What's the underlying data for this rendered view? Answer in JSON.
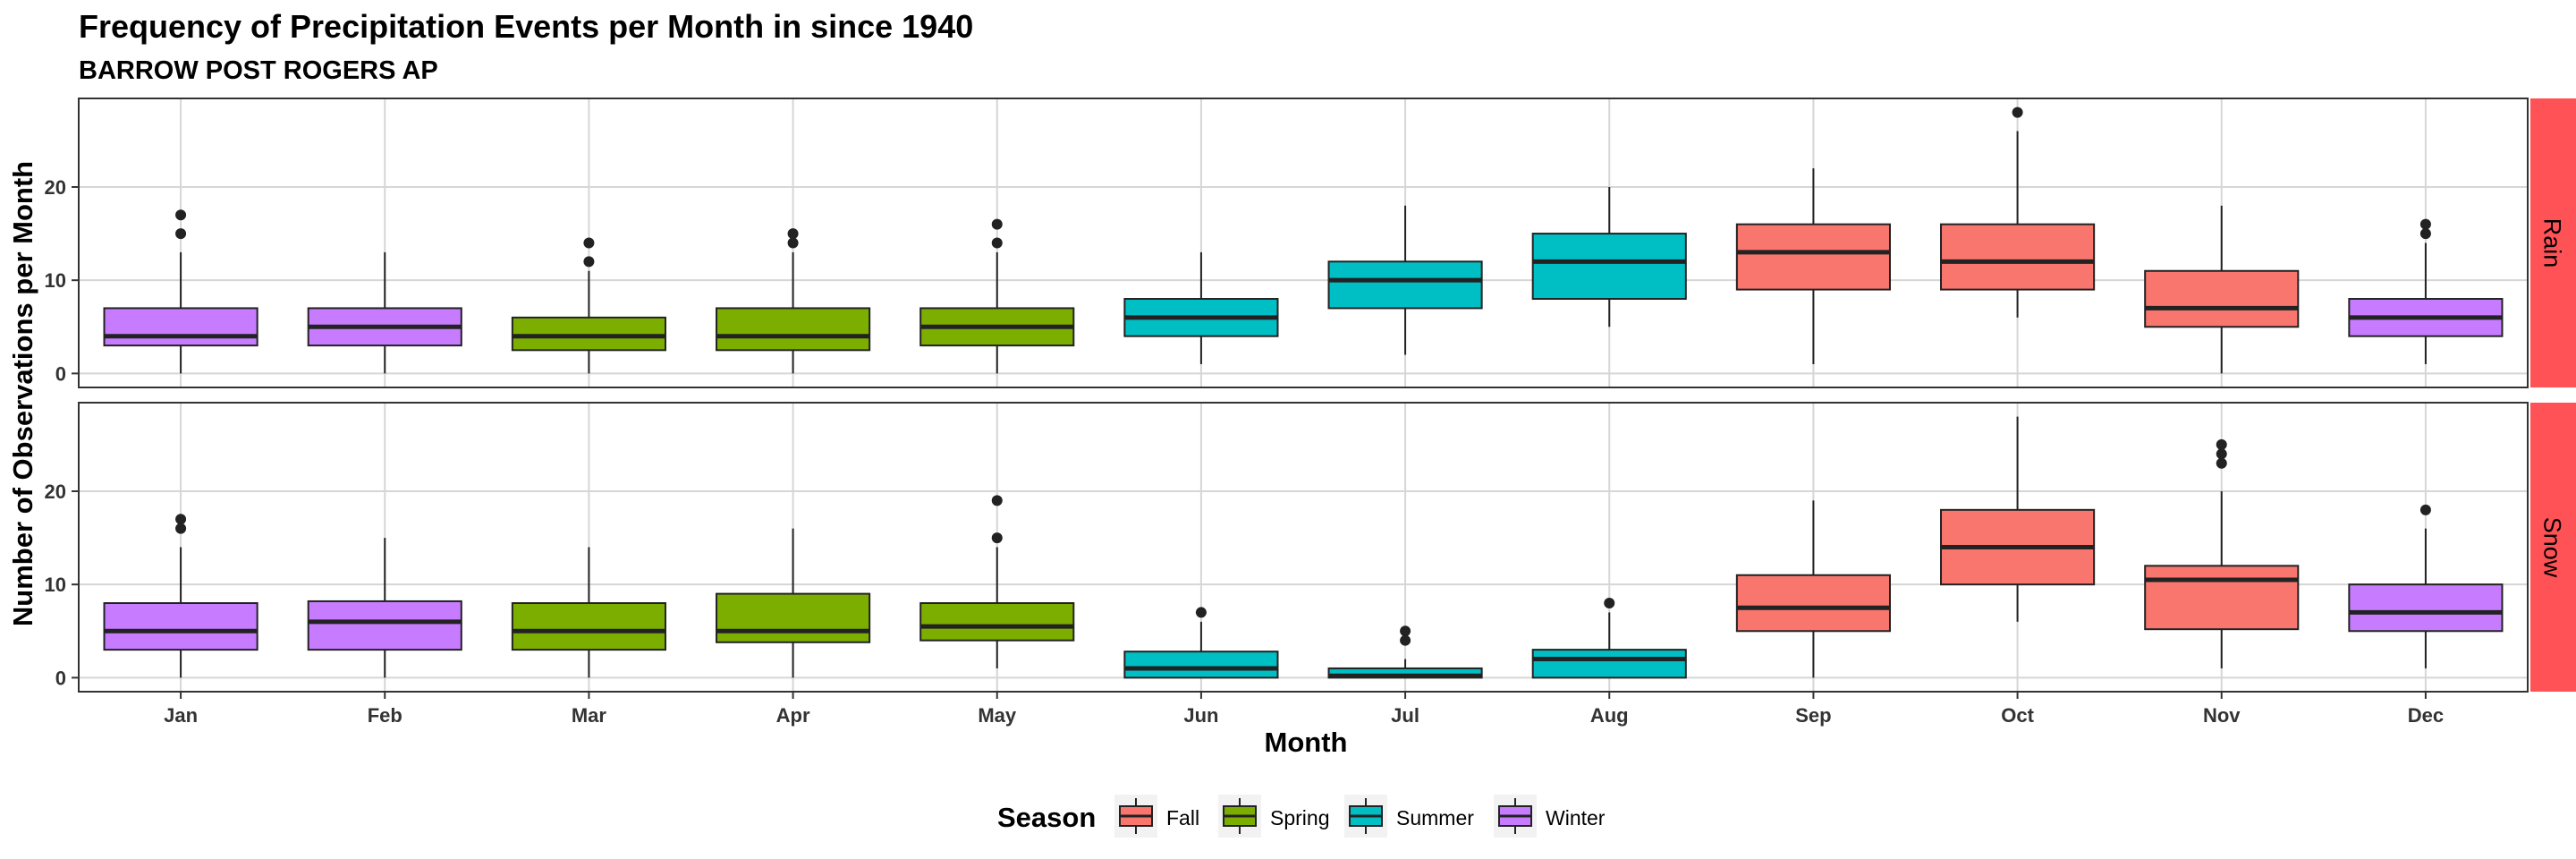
{
  "chart_data": {
    "type": "boxplot",
    "title": "Frequency of Precipitation Events per Month in since 1940",
    "subtitle": "BARROW POST ROGERS AP",
    "xlabel": "Month",
    "ylabel": "Number of Observations per Month",
    "ylim": [
      -1.5,
      29.5
    ],
    "yticks": [
      0,
      10,
      20
    ],
    "grid": true,
    "categories": [
      "Jan",
      "Feb",
      "Mar",
      "Apr",
      "May",
      "Jun",
      "Jul",
      "Aug",
      "Sep",
      "Oct",
      "Nov",
      "Dec"
    ],
    "legend": {
      "title": "Season",
      "position": "bottom",
      "entries": [
        {
          "label": "Fall",
          "color": "#F8766D"
        },
        {
          "label": "Spring",
          "color": "#7CAE00"
        },
        {
          "label": "Summer",
          "color": "#00BFC4"
        },
        {
          "label": "Winter",
          "color": "#C77CFF"
        }
      ]
    },
    "panels": [
      {
        "label": "Rain",
        "boxes": [
          {
            "month": "Jan",
            "season": "Winter",
            "min": 0,
            "q1": 3,
            "median": 4,
            "q3": 7,
            "max": 13,
            "outliers": [
              15,
              17
            ]
          },
          {
            "month": "Feb",
            "season": "Winter",
            "min": 0,
            "q1": 3,
            "median": 5,
            "q3": 7,
            "max": 13,
            "outliers": []
          },
          {
            "month": "Mar",
            "season": "Spring",
            "min": 0,
            "q1": 2.5,
            "median": 4,
            "q3": 6,
            "max": 11,
            "outliers": [
              12,
              14
            ]
          },
          {
            "month": "Apr",
            "season": "Spring",
            "min": 0,
            "q1": 2.5,
            "median": 4,
            "q3": 7,
            "max": 13,
            "outliers": [
              14,
              15
            ]
          },
          {
            "month": "May",
            "season": "Spring",
            "min": 0,
            "q1": 3,
            "median": 5,
            "q3": 7,
            "max": 13,
            "outliers": [
              14,
              16
            ]
          },
          {
            "month": "Jun",
            "season": "Summer",
            "min": 1,
            "q1": 4,
            "median": 6,
            "q3": 8,
            "max": 13,
            "outliers": []
          },
          {
            "month": "Jul",
            "season": "Summer",
            "min": 2,
            "q1": 7,
            "median": 10,
            "q3": 12,
            "max": 18,
            "outliers": []
          },
          {
            "month": "Aug",
            "season": "Summer",
            "min": 5,
            "q1": 8,
            "median": 12,
            "q3": 15,
            "max": 20,
            "outliers": []
          },
          {
            "month": "Sep",
            "season": "Fall",
            "min": 1,
            "q1": 9,
            "median": 13,
            "q3": 16,
            "max": 22,
            "outliers": []
          },
          {
            "month": "Oct",
            "season": "Fall",
            "min": 6,
            "q1": 9,
            "median": 12,
            "q3": 16,
            "max": 26,
            "outliers": [
              28
            ]
          },
          {
            "month": "Nov",
            "season": "Fall",
            "min": 0,
            "q1": 5,
            "median": 7,
            "q3": 11,
            "max": 18,
            "outliers": []
          },
          {
            "month": "Dec",
            "season": "Winter",
            "min": 1,
            "q1": 4,
            "median": 6,
            "q3": 8,
            "max": 14,
            "outliers": [
              15,
              16
            ]
          }
        ]
      },
      {
        "label": "Snow",
        "boxes": [
          {
            "month": "Jan",
            "season": "Winter",
            "min": 0,
            "q1": 3,
            "median": 5,
            "q3": 8,
            "max": 14,
            "outliers": [
              16,
              17
            ]
          },
          {
            "month": "Feb",
            "season": "Winter",
            "min": 0,
            "q1": 3,
            "median": 6,
            "q3": 8.2,
            "max": 15,
            "outliers": []
          },
          {
            "month": "Mar",
            "season": "Spring",
            "min": 0,
            "q1": 3,
            "median": 5,
            "q3": 8,
            "max": 14,
            "outliers": []
          },
          {
            "month": "Apr",
            "season": "Spring",
            "min": 0,
            "q1": 3.8,
            "median": 5,
            "q3": 9,
            "max": 16,
            "outliers": []
          },
          {
            "month": "May",
            "season": "Spring",
            "min": 1,
            "q1": 4,
            "median": 5.5,
            "q3": 8,
            "max": 14,
            "outliers": [
              15,
              19
            ]
          },
          {
            "month": "Jun",
            "season": "Summer",
            "min": 0,
            "q1": 0,
            "median": 1,
            "q3": 2.8,
            "max": 6,
            "outliers": [
              7
            ]
          },
          {
            "month": "Jul",
            "season": "Summer",
            "min": 0,
            "q1": 0,
            "median": 0.2,
            "q3": 1,
            "max": 2,
            "outliers": [
              4,
              5
            ]
          },
          {
            "month": "Aug",
            "season": "Summer",
            "min": 0,
            "q1": 0,
            "median": 2,
            "q3": 3,
            "max": 7,
            "outliers": [
              8
            ]
          },
          {
            "month": "Sep",
            "season": "Fall",
            "min": 0,
            "q1": 5,
            "median": 7.5,
            "q3": 11,
            "max": 19,
            "outliers": []
          },
          {
            "month": "Oct",
            "season": "Fall",
            "min": 6,
            "q1": 10,
            "median": 14,
            "q3": 18,
            "max": 28,
            "outliers": []
          },
          {
            "month": "Nov",
            "season": "Fall",
            "min": 1,
            "q1": 5.2,
            "median": 10.5,
            "q3": 12,
            "max": 20,
            "outliers": [
              23,
              24,
              25
            ]
          },
          {
            "month": "Dec",
            "season": "Winter",
            "min": 1,
            "q1": 5,
            "median": 7,
            "q3": 10,
            "max": 16,
            "outliers": [
              18
            ]
          }
        ]
      }
    ]
  }
}
